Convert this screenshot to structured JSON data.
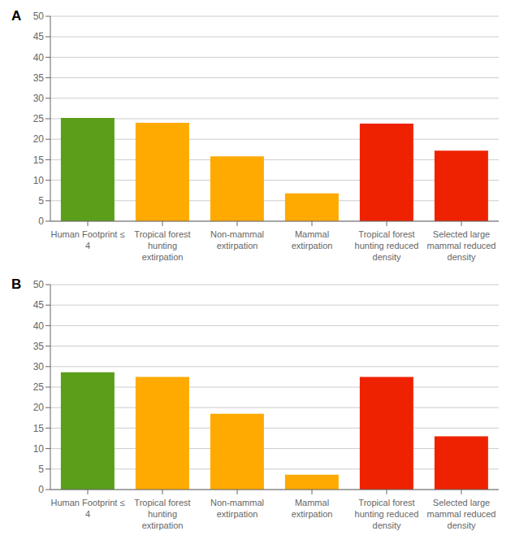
{
  "chart_data": [
    {
      "type": "bar",
      "title": "A",
      "categories": [
        "Human Footprint ≤\n4",
        "Tropical forest\nhunting\nextirpation",
        "Non-mammal\nextirpation",
        "Mammal\nextirpation",
        "Tropical forest\nhunting reduced\ndensity",
        "Selected large\nmammal reduced\ndensity"
      ],
      "values": [
        25.2,
        24.0,
        15.8,
        6.8,
        23.8,
        17.2
      ],
      "colors": [
        "#5a9e1a",
        "#ffaa00",
        "#ffaa00",
        "#ffaa00",
        "#ee2200",
        "#ee2200"
      ],
      "ylim": [
        0,
        50
      ],
      "yticks": [
        0,
        5,
        10,
        15,
        20,
        25,
        30,
        35,
        40,
        45,
        50
      ],
      "grid": true
    },
    {
      "type": "bar",
      "title": "B",
      "categories": [
        "Human Footprint ≤\n4",
        "Tropical forest\nhunting\nextirpation",
        "Non-mammal\nextirpation",
        "Mammal\nextirpation",
        "Tropical forest\nhunting reduced\ndensity",
        "Selected large\nmammal reduced\ndensity"
      ],
      "values": [
        28.6,
        27.5,
        18.5,
        3.6,
        27.5,
        13.0
      ],
      "colors": [
        "#5a9e1a",
        "#ffaa00",
        "#ffaa00",
        "#ffaa00",
        "#ee2200",
        "#ee2200"
      ],
      "ylim": [
        0,
        50
      ],
      "yticks": [
        0,
        5,
        10,
        15,
        20,
        25,
        30,
        35,
        40,
        45,
        50
      ],
      "grid": true
    }
  ]
}
